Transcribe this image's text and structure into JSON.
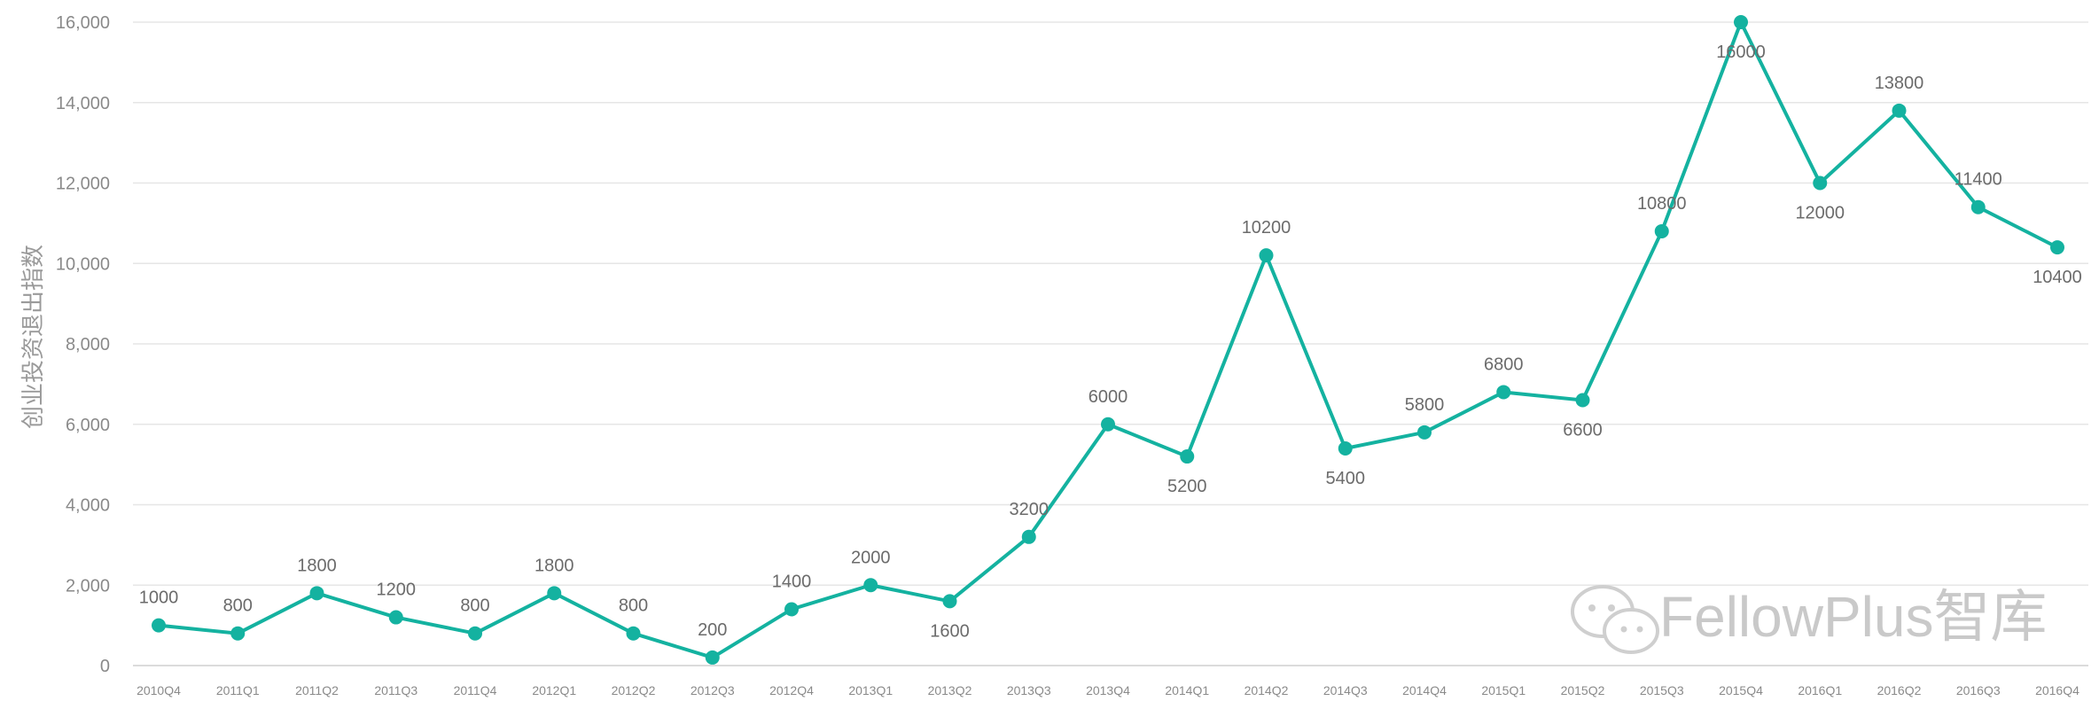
{
  "chart_data": {
    "type": "line",
    "title": "",
    "xlabel": "",
    "ylabel": "创业投资退出指数",
    "ylim": [
      0,
      16000
    ],
    "yticks": [
      0,
      2000,
      4000,
      6000,
      8000,
      10000,
      12000,
      14000,
      16000
    ],
    "ytick_labels": [
      "0",
      "2,000",
      "4,000",
      "6,000",
      "8,000",
      "10,000",
      "12,000",
      "14,000",
      "16,000"
    ],
    "grid": true,
    "legend": "none",
    "line_color": "#14b2a0",
    "categories": [
      "2010Q4",
      "2011Q1",
      "2011Q2",
      "2011Q3",
      "2011Q4",
      "2012Q1",
      "2012Q2",
      "2012Q3",
      "2012Q4",
      "2013Q1",
      "2013Q2",
      "2013Q3",
      "2013Q4",
      "2014Q1",
      "2014Q2",
      "2014Q3",
      "2014Q4",
      "2015Q1",
      "2015Q2",
      "2015Q3",
      "2015Q4",
      "2016Q1",
      "2016Q2",
      "2016Q3",
      "2016Q4"
    ],
    "series": [
      {
        "values": [
          1000,
          800,
          1800,
          1200,
          800,
          1800,
          800,
          200,
          1400,
          2000,
          1600,
          3200,
          6000,
          5200,
          10200,
          5400,
          5800,
          6800,
          6600,
          10800,
          16000,
          12000,
          13800,
          11400,
          10400
        ],
        "data_labels": [
          "1000",
          "800",
          "1800",
          "1200",
          "800",
          "1800",
          "800",
          "200",
          "1400",
          "2000",
          "1600",
          "3200",
          "6000",
          "5200",
          "10200",
          "5400",
          "5800",
          "6800",
          "6600",
          "10800",
          "16000",
          "12000",
          "13800",
          "11400",
          "10400"
        ]
      }
    ]
  },
  "watermark": {
    "text": "FellowPlus智库",
    "icon": "wechat-icon"
  }
}
